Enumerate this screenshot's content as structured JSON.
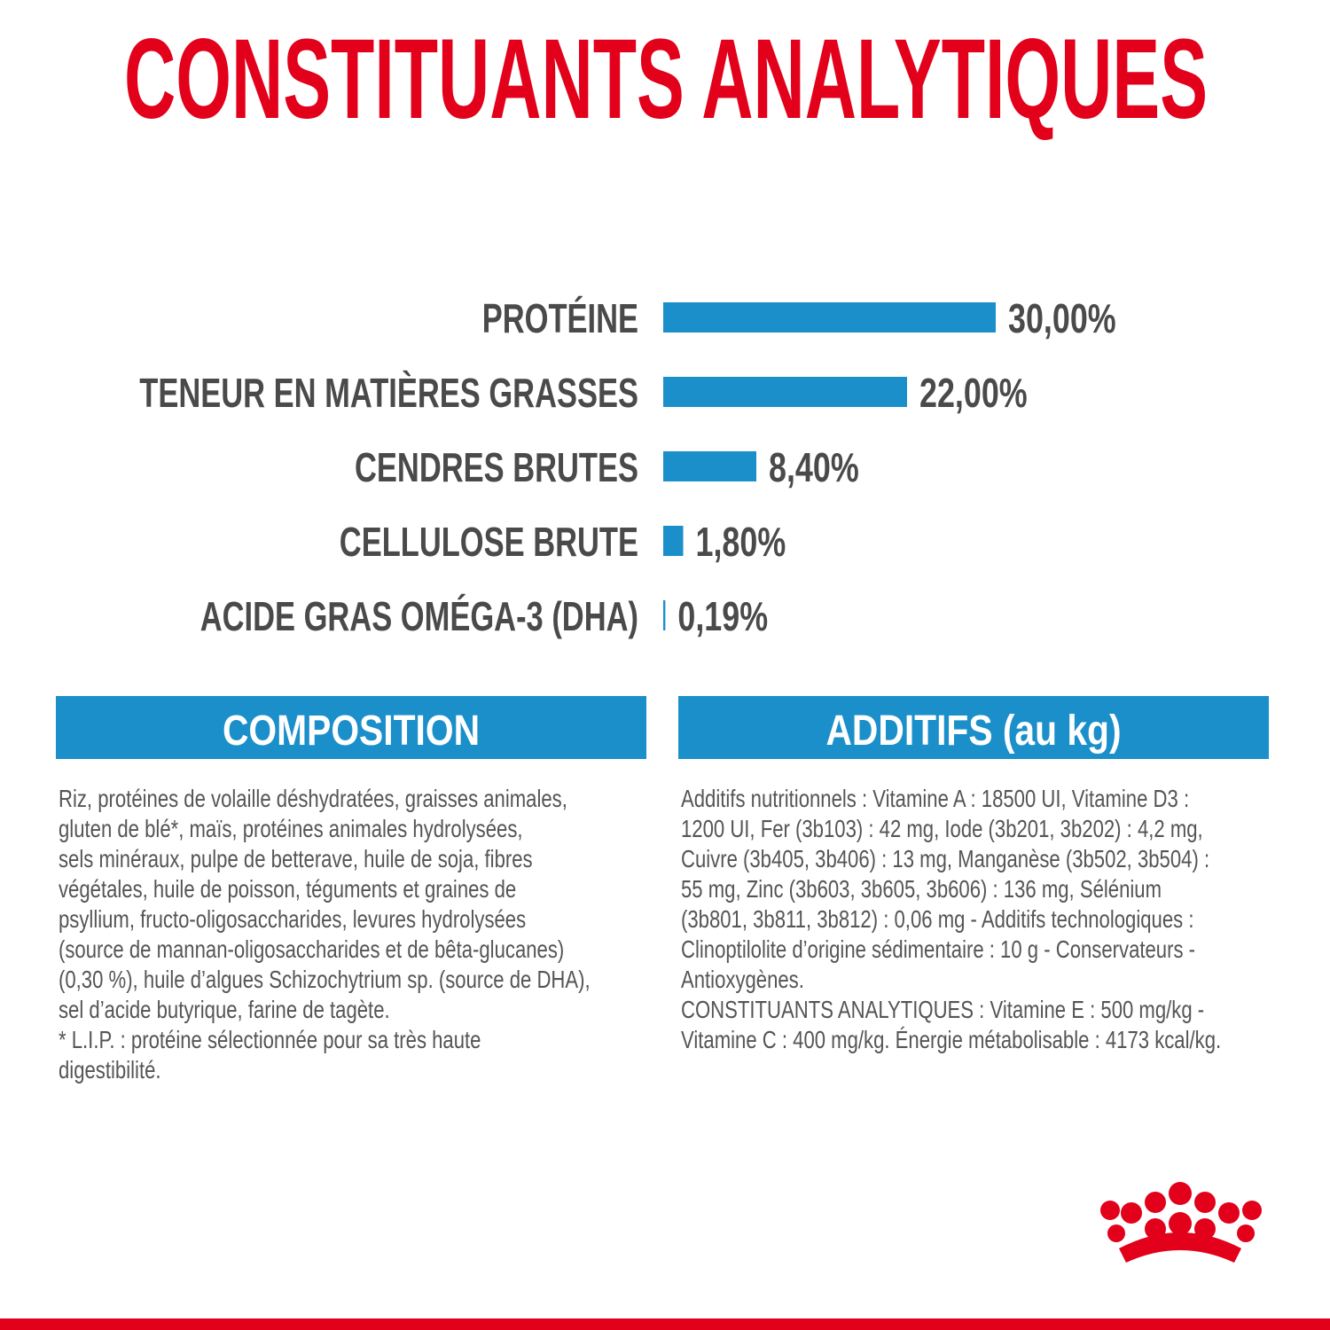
{
  "chart_data": {
    "type": "bar",
    "orientation": "horizontal",
    "title": "CONSTITUANTS ANALYTIQUES",
    "categories": [
      "PROTÉINE",
      "TENEUR EN MATIÈRES GRASSES",
      "CENDRES BRUTES",
      "CELLULOSE BRUTE",
      "ACIDE GRAS OMÉGA-3 (DHA)"
    ],
    "values": [
      30,
      22,
      8.4,
      1.8,
      0.19
    ],
    "value_labels": [
      "30,00%",
      "22,00%",
      "8,40%",
      "1,80%",
      "0,19%"
    ],
    "color": "#1a8fc9"
  },
  "composition": {
    "title": "COMPOSITION",
    "lines": [
      "Riz, protéines de volaille déshydratées, graisses animales,",
      "gluten de blé*, maïs, protéines animales hydrolysées,",
      "sels minéraux, pulpe de betterave, huile de soja, fibres",
      "végétales, huile de poisson, téguments et graines de",
      "psyllium, fructo-oligosaccharides, levures hydrolysées",
      "(source de mannan-oligosaccharides et de bêta-glucanes)",
      "(0,30 %), huile d’algues Schizochytrium sp. (source de DHA),",
      "sel d’acide butyrique, farine de tagète.",
      "* L.I.P. : protéine sélectionnée pour sa très haute",
      "digestibilité."
    ]
  },
  "additifs": {
    "title": "ADDITIFS (au kg)",
    "lines": [
      "Additifs nutritionnels : Vitamine A : 18500 UI, Vitamine D3 :",
      "1200 UI, Fer (3b103) : 42 mg, Iode (3b201, 3b202) : 4,2 mg,",
      "Cuivre (3b405, 3b406) : 13 mg, Manganèse (3b502, 3b504) :",
      "55 mg, Zinc (3b603, 3b605, 3b606) : 136 mg, Sélénium",
      "(3b801, 3b811, 3b812) : 0,06 mg - Additifs technologiques :",
      "Clinoptilolite d’origine sédimentaire : 10 g - Conservateurs -",
      "Antioxygènes.",
      "CONSTITUANTS ANALYTIQUES : Vitamine E : 500 mg/kg -",
      "Vitamine C : 400 mg/kg. Énergie métabolisable : 4173 kcal/kg."
    ]
  }
}
